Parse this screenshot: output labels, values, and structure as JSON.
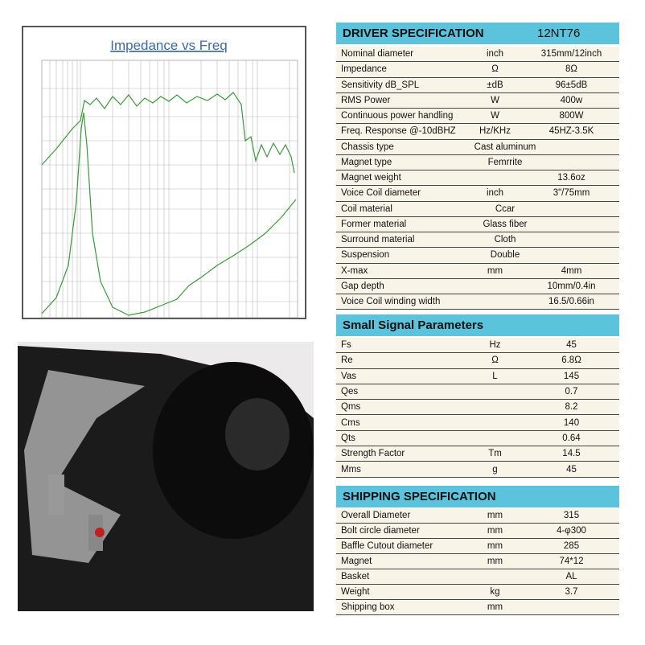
{
  "chart": {
    "title": "Impedance vs Freq"
  },
  "driver": {
    "title": "DRIVER SPECIFICATION",
    "model": "12NT76",
    "rows": [
      {
        "label": "Nominal diameter",
        "unit": "inch",
        "value": "315mm/12inch"
      },
      {
        "label": "Impedance",
        "unit": "Ω",
        "value": "8Ω"
      },
      {
        "label": "Sensitivity dB_SPL",
        "unit": "±dB",
        "value": "96±5dB"
      },
      {
        "label": "RMS Power",
        "unit": "W",
        "value": "400w"
      },
      {
        "label": "Continuous power handling",
        "unit": "W",
        "value": "800W"
      },
      {
        "label": "Freq. Response @-10dBHZ",
        "unit": "Hz/KHz",
        "value": "45HZ-3.5K"
      },
      {
        "label": "Chassis type",
        "text": "Cast aluminum"
      },
      {
        "label": "Magnet type",
        "text": "Femrrite"
      },
      {
        "label": "Magnet weight",
        "value": "13.6oz"
      },
      {
        "label": "Voice Coil diameter",
        "unit": "inch",
        "value": "3\"/75mm"
      },
      {
        "label": "Coil material",
        "text": "Ccar"
      },
      {
        "label": "Former material",
        "text": "Glass fiber"
      },
      {
        "label": "Surround material",
        "text": "Cloth"
      },
      {
        "label": "Suspension",
        "text": "Double"
      },
      {
        "label": "X-max",
        "unit": "mm",
        "value": "4mm"
      },
      {
        "label": "Gap depth",
        "value": "10mm/0.4in"
      },
      {
        "label": "Voice Coil winding width",
        "value": "16.5/0.66in"
      }
    ]
  },
  "small_signal": {
    "title": "Small Signal Parameters",
    "rows": [
      {
        "label": "Fs",
        "unit": "Hz",
        "value": "45"
      },
      {
        "label": "Re",
        "unit": "Ω",
        "value": "6.8Ω"
      },
      {
        "label": "Vas",
        "unit": "L",
        "value": "145"
      },
      {
        "label": "Qes",
        "value": "0.7"
      },
      {
        "label": "Qms",
        "value": "8.2"
      },
      {
        "label": "Cms",
        "value": "140"
      },
      {
        "label": "Qts",
        "value": "0.64"
      },
      {
        "label": "Strength Factor",
        "unit": "Tm",
        "value": "14.5"
      },
      {
        "label": "Mms",
        "unit": "g",
        "value": "45"
      }
    ]
  },
  "shipping": {
    "title": "SHIPPING SPECIFICATION",
    "rows": [
      {
        "label": "Overall Diameter",
        "unit": "mm",
        "value": "315"
      },
      {
        "label": "Bolt circle diameter",
        "unit": "mm",
        "value": "4-φ300"
      },
      {
        "label": "Baffle Cutout diameter",
        "unit": "mm",
        "value": "285"
      },
      {
        "label": "Magnet",
        "unit": "mm",
        "value": "74*12"
      },
      {
        "label": "Basket",
        "value": "AL"
      },
      {
        "label": "Weight",
        "unit": "kg",
        "value": "3.7"
      },
      {
        "label": "Shipping box",
        "unit": "mm"
      }
    ]
  }
}
